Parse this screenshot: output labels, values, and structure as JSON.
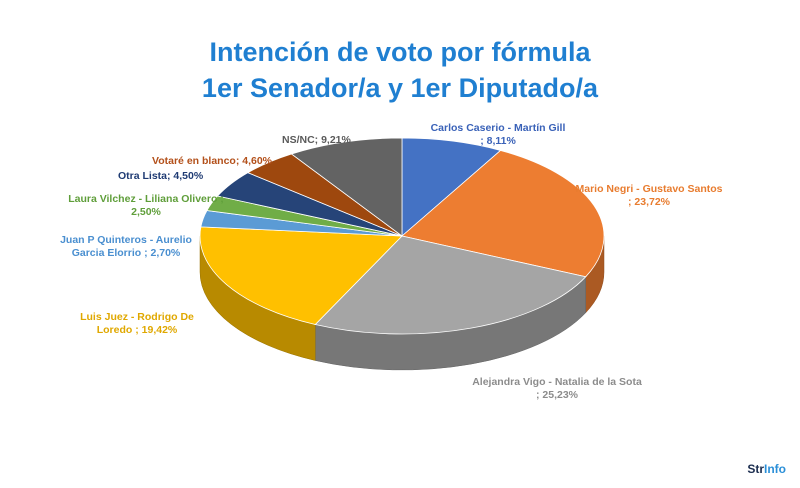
{
  "chart_data": {
    "type": "pie",
    "title": "Intención de voto por fórmula",
    "subtitle": "1er Senador/a y 1er Diputado/a",
    "slices": [
      {
        "label": "Carlos Caserio - Martín Gill ; 8,11%",
        "value": 8.11,
        "color": "#4472c4"
      },
      {
        "label": "Mario Negri - Gustavo Santos ; 23,72%",
        "value": 23.72,
        "color": "#ed7d31"
      },
      {
        "label": "Alejandra Vigo - Natalia de la Sota ; 25,23%",
        "value": 25.23,
        "color": "#a5a5a5"
      },
      {
        "label": "Luis Juez - Rodrigo De Loredo ; 19,42%",
        "value": 19.42,
        "color": "#ffc000"
      },
      {
        "label": "Juan P Quinteros - Aurelio Garcia Elorrio ; 2,70%",
        "value": 2.7,
        "color": "#5b9bd5"
      },
      {
        "label": "Laura Vilchez - Liliana Olivero ; 2,50%",
        "value": 2.5,
        "color": "#70ad47"
      },
      {
        "label": "Otra Lista; 4,50%",
        "value": 4.5,
        "color": "#264478"
      },
      {
        "label": "Votaré en blanco; 4,60%",
        "value": 4.6,
        "color": "#9e480e"
      },
      {
        "label": "NS/NC; 9,21%",
        "value": 9.21,
        "color": "#636363"
      }
    ],
    "label_colors": [
      "#3a62b8",
      "#e87c2f",
      "#8c8c8c",
      "#e0a800",
      "#4a8fd0",
      "#5f9e3a",
      "#1f3b73",
      "#b3501a",
      "#5a5a5a"
    ]
  },
  "brand": {
    "part1": "Str",
    "part2": "Info"
  }
}
